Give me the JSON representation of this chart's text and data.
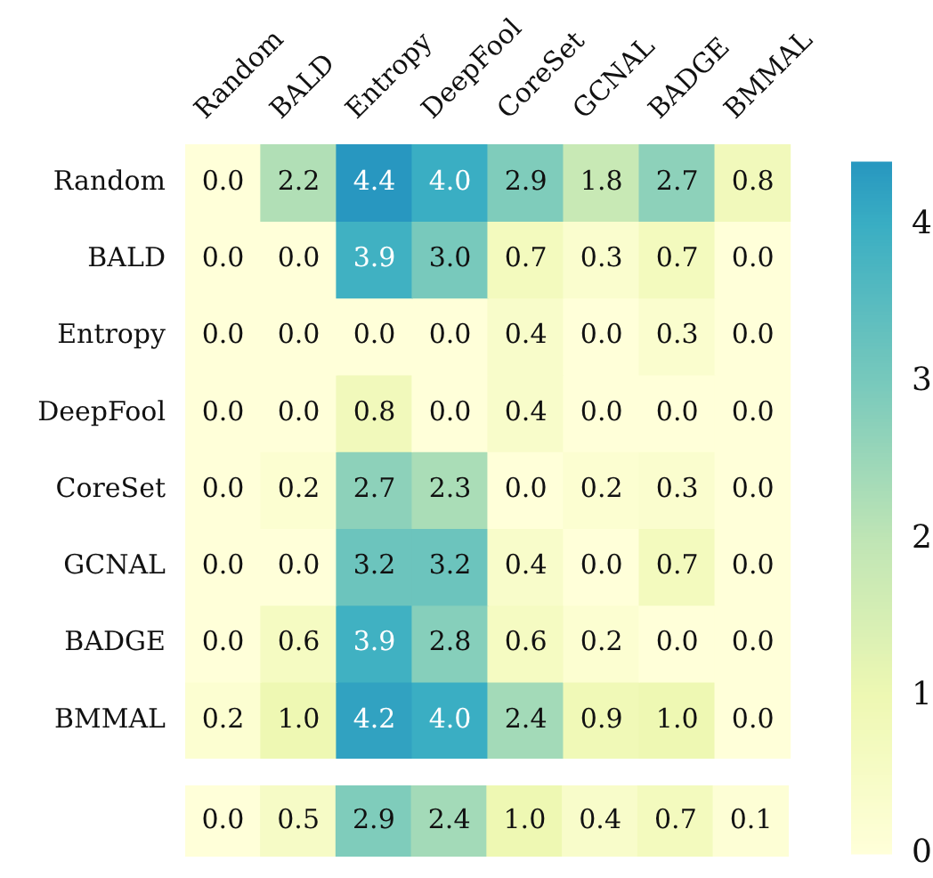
{
  "chart_data": [
    {
      "type": "heatmap",
      "categories": [
        "Random",
        "BALD",
        "Entropy",
        "DeepFool",
        "CoreSet",
        "GCNAL",
        "BADGE",
        "BMMAL"
      ],
      "y_categories": [
        "Random",
        "BALD",
        "Entropy",
        "DeepFool",
        "CoreSet",
        "GCNAL",
        "BADGE",
        "BMMAL"
      ],
      "cells": [
        [
          0.0,
          2.2,
          4.4,
          4.0,
          2.9,
          1.8,
          2.7,
          0.8
        ],
        [
          0.0,
          0.0,
          3.9,
          3.0,
          0.7,
          0.3,
          0.7,
          0.0
        ],
        [
          0.0,
          0.0,
          0.0,
          0.0,
          0.4,
          0.0,
          0.3,
          0.0
        ],
        [
          0.0,
          0.0,
          0.8,
          0.0,
          0.4,
          0.0,
          0.0,
          0.0
        ],
        [
          0.0,
          0.2,
          2.7,
          2.3,
          0.0,
          0.2,
          0.3,
          0.0
        ],
        [
          0.0,
          0.0,
          3.2,
          3.2,
          0.4,
          0.0,
          0.7,
          0.0
        ],
        [
          0.0,
          0.6,
          3.9,
          2.8,
          0.6,
          0.2,
          0.0,
          0.0
        ],
        [
          0.2,
          1.0,
          4.2,
          4.0,
          2.4,
          0.9,
          1.0,
          0.0
        ]
      ],
      "cell_labels": [
        [
          "0.0",
          "2.2",
          "4.4",
          "4.0",
          "2.9",
          "1.8",
          "2.7",
          "0.8"
        ],
        [
          "0.0",
          "0.0",
          "3.9",
          "3.0",
          "0.7",
          "0.3",
          "0.7",
          "0.0"
        ],
        [
          "0.0",
          "0.0",
          "0.0",
          "0.0",
          "0.4",
          "0.0",
          "0.3",
          "0.0"
        ],
        [
          "0.0",
          "0.0",
          "0.8",
          "0.0",
          "0.4",
          "0.0",
          "0.0",
          "0.0"
        ],
        [
          "0.0",
          "0.2",
          "2.7",
          "2.3",
          "0.0",
          "0.2",
          "0.3",
          "0.0"
        ],
        [
          "0.0",
          "0.0",
          "3.2",
          "3.2",
          "0.4",
          "0.0",
          "0.7",
          "0.0"
        ],
        [
          "0.0",
          "0.6",
          "3.9",
          "2.8",
          "0.6",
          "0.2",
          "0.0",
          "0.0"
        ],
        [
          "0.2",
          "1.0",
          "4.2",
          "4.0",
          "2.4",
          "0.9",
          "1.0",
          "0.0"
        ]
      ],
      "clim": [
        0,
        4.4
      ],
      "cticks": [
        0,
        1,
        2,
        3,
        4
      ]
    },
    {
      "type": "heatmap",
      "categories": [
        null,
        null,
        null,
        null,
        null,
        null,
        null,
        null
      ],
      "y_categories": [
        null
      ],
      "cells": [
        [
          0.0,
          0.5,
          2.9,
          2.4,
          1.0,
          0.4,
          0.7,
          0.1
        ]
      ],
      "cell_labels": [
        [
          "0.0",
          "0.5",
          "2.9",
          "2.4",
          "1.0",
          "0.4",
          "0.7",
          "0.1"
        ]
      ],
      "tick_labels": false
    }
  ]
}
